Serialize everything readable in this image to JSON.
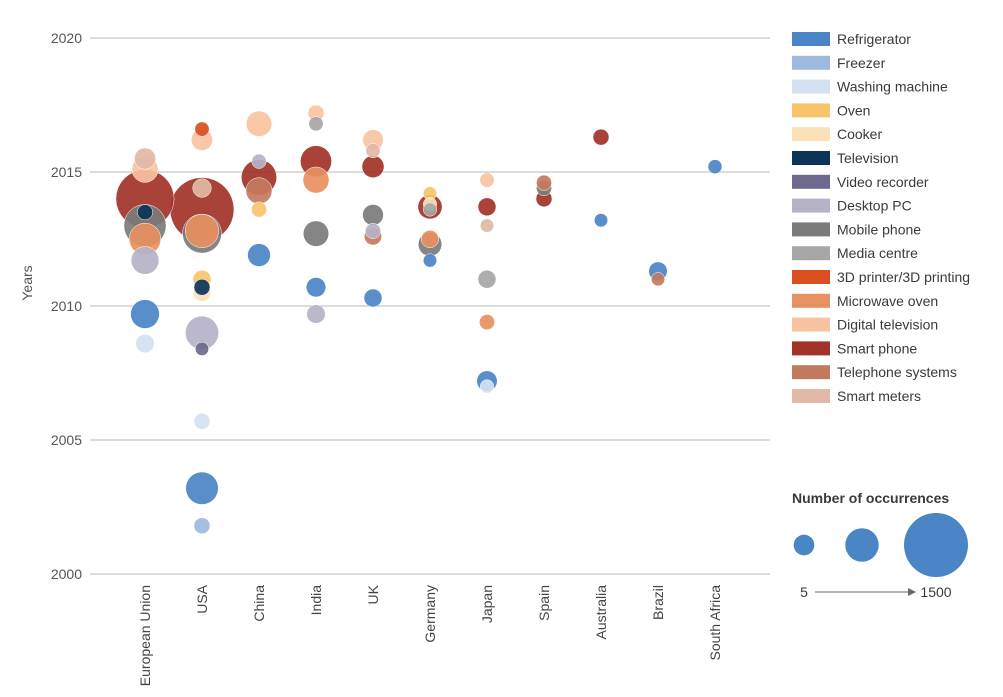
{
  "chart_data": {
    "type": "scatter",
    "ylabel": "Years",
    "ylim": [
      2000,
      2020
    ],
    "yticks": [
      2000,
      2005,
      2010,
      2015,
      2020
    ],
    "categories": [
      "European Union",
      "USA",
      "China",
      "India",
      "UK",
      "Germany",
      "Japan",
      "Spain",
      "Australia",
      "Brazil",
      "South Africa"
    ],
    "series": [
      {
        "name": "Refrigerator",
        "color": "#4a86c5",
        "points": [
          {
            "x": "European Union",
            "y": 2009.7,
            "size": 200
          },
          {
            "x": "USA",
            "y": 2003.2,
            "size": 280
          },
          {
            "x": "China",
            "y": 2011.9,
            "size": 100
          },
          {
            "x": "India",
            "y": 2010.7,
            "size": 60
          },
          {
            "x": "UK",
            "y": 2010.3,
            "size": 45
          },
          {
            "x": "Germany",
            "y": 2011.7,
            "size": 15
          },
          {
            "x": "Japan",
            "y": 2007.2,
            "size": 70
          },
          {
            "x": "Australia",
            "y": 2013.2,
            "size": 15
          },
          {
            "x": "Brazil",
            "y": 2011.3,
            "size": 50
          },
          {
            "x": "South Africa",
            "y": 2015.2,
            "size": 18
          }
        ]
      },
      {
        "name": "Freezer",
        "color": "#9db9e0",
        "points": [
          {
            "x": "USA",
            "y": 2001.8,
            "size": 30
          }
        ]
      },
      {
        "name": "Washing machine",
        "color": "#d4e1f3",
        "points": [
          {
            "x": "European Union",
            "y": 2008.6,
            "size": 50
          },
          {
            "x": "USA",
            "y": 2005.7,
            "size": 30
          },
          {
            "x": "Japan",
            "y": 2007.0,
            "size": 15
          }
        ]
      },
      {
        "name": "Oven",
        "color": "#f7c46a",
        "points": [
          {
            "x": "USA",
            "y": 2011.0,
            "size": 45
          },
          {
            "x": "China",
            "y": 2013.6,
            "size": 25
          },
          {
            "x": "Germany",
            "y": 2014.2,
            "size": 15
          }
        ]
      },
      {
        "name": "Cooker",
        "color": "#fce0b8",
        "points": [
          {
            "x": "USA",
            "y": 2010.5,
            "size": 40
          },
          {
            "x": "Germany",
            "y": 2013.8,
            "size": 15
          }
        ]
      },
      {
        "name": "Television",
        "color": "#0d3358",
        "points": [
          {
            "x": "European Union",
            "y": 2013.5,
            "size": 25
          },
          {
            "x": "USA",
            "y": 2010.7,
            "size": 30
          }
        ]
      },
      {
        "name": "Video recorder",
        "color": "#6c6a8e",
        "points": [
          {
            "x": "USA",
            "y": 2008.4,
            "size": 15
          }
        ]
      },
      {
        "name": "Desktop PC",
        "color": "#b6b2c8",
        "points": [
          {
            "x": "European Union",
            "y": 2011.7,
            "size": 180
          },
          {
            "x": "USA",
            "y": 2009.0,
            "size": 300
          },
          {
            "x": "China",
            "y": 2015.4,
            "size": 20
          },
          {
            "x": "India",
            "y": 2009.7,
            "size": 50
          },
          {
            "x": "UK",
            "y": 2012.8,
            "size": 25
          }
        ]
      },
      {
        "name": "Mobile phone",
        "color": "#7b7b7b",
        "points": [
          {
            "x": "European Union",
            "y": 2013.0,
            "size": 550
          },
          {
            "x": "USA",
            "y": 2012.7,
            "size": 450
          },
          {
            "x": "India",
            "y": 2012.7,
            "size": 140
          },
          {
            "x": "UK",
            "y": 2013.4,
            "size": 75
          },
          {
            "x": "Germany",
            "y": 2012.3,
            "size": 110
          },
          {
            "x": "Spain",
            "y": 2014.4,
            "size": 25
          }
        ]
      },
      {
        "name": "Media centre",
        "color": "#a6a6a6",
        "points": [
          {
            "x": "India",
            "y": 2016.8,
            "size": 20
          },
          {
            "x": "Germany",
            "y": 2013.6,
            "size": 15
          },
          {
            "x": "Japan",
            "y": 2011.0,
            "size": 45
          }
        ]
      },
      {
        "name": "3D printer/3D printing",
        "color": "#d94f1f",
        "points": [
          {
            "x": "USA",
            "y": 2016.6,
            "size": 20
          }
        ]
      },
      {
        "name": "Microwave oven",
        "color": "#e89060",
        "points": [
          {
            "x": "European Union",
            "y": 2012.5,
            "size": 260
          },
          {
            "x": "USA",
            "y": 2012.8,
            "size": 300
          },
          {
            "x": "India",
            "y": 2014.7,
            "size": 150
          },
          {
            "x": "Germany",
            "y": 2012.5,
            "size": 40
          },
          {
            "x": "Japan",
            "y": 2009.4,
            "size": 25
          }
        ]
      },
      {
        "name": "Digital television",
        "color": "#f7c3a0",
        "points": [
          {
            "x": "European Union",
            "y": 2015.1,
            "size": 150
          },
          {
            "x": "USA",
            "y": 2016.2,
            "size": 80
          },
          {
            "x": "China",
            "y": 2016.8,
            "size": 140
          },
          {
            "x": "India",
            "y": 2017.2,
            "size": 30
          },
          {
            "x": "UK",
            "y": 2016.2,
            "size": 70
          },
          {
            "x": "Japan",
            "y": 2014.7,
            "size": 20
          }
        ]
      },
      {
        "name": "Smart phone",
        "color": "#a23228",
        "points": [
          {
            "x": "European Union",
            "y": 2014.0,
            "size": 1200
          },
          {
            "x": "USA",
            "y": 2013.6,
            "size": 1500
          },
          {
            "x": "China",
            "y": 2014.8,
            "size": 350
          },
          {
            "x": "India",
            "y": 2015.4,
            "size": 250
          },
          {
            "x": "UK",
            "y": 2015.2,
            "size": 90
          },
          {
            "x": "Germany",
            "y": 2013.7,
            "size": 120
          },
          {
            "x": "Japan",
            "y": 2013.7,
            "size": 45
          },
          {
            "x": "Spain",
            "y": 2014.0,
            "size": 30
          },
          {
            "x": "Australia",
            "y": 2016.3,
            "size": 30
          }
        ]
      },
      {
        "name": "Telephone systems",
        "color": "#c47a5e",
        "points": [
          {
            "x": "China",
            "y": 2014.3,
            "size": 150
          },
          {
            "x": "UK",
            "y": 2012.6,
            "size": 40
          },
          {
            "x": "Spain",
            "y": 2014.6,
            "size": 25
          },
          {
            "x": "Brazil",
            "y": 2011.0,
            "size": 15
          }
        ]
      },
      {
        "name": "Smart meters",
        "color": "#e2b8a6",
        "points": [
          {
            "x": "European Union",
            "y": 2015.5,
            "size": 80
          },
          {
            "x": "USA",
            "y": 2014.4,
            "size": 50
          },
          {
            "x": "UK",
            "y": 2015.8,
            "size": 20
          },
          {
            "x": "Japan",
            "y": 2013.0,
            "size": 15
          }
        ]
      }
    ],
    "size_legend": {
      "title": "Number of occurrences",
      "min": 5,
      "max": 1500,
      "samples": [
        5,
        300,
        1500
      ]
    }
  }
}
